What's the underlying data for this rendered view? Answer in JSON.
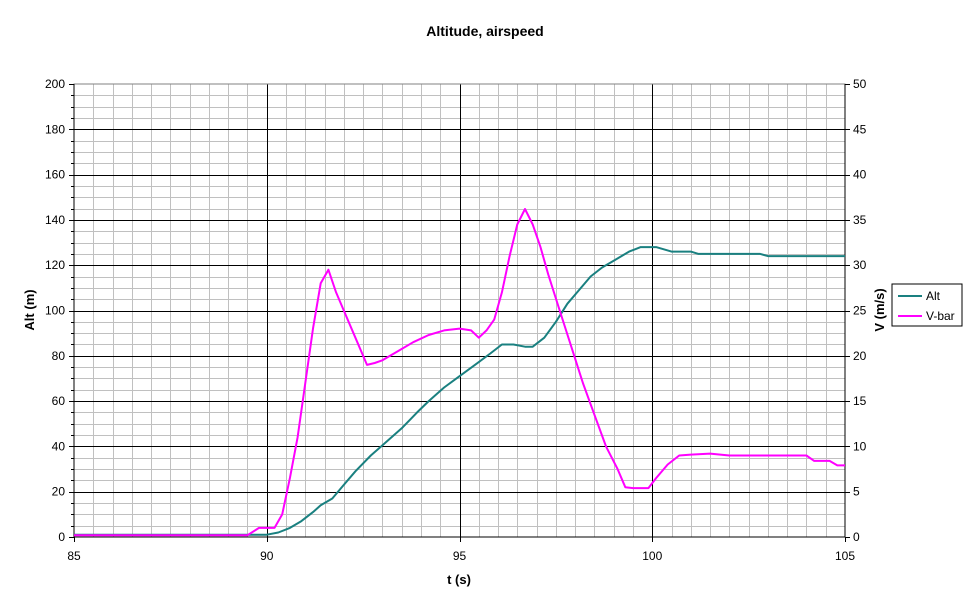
{
  "chart_data": {
    "type": "line",
    "title": "Altitude, airspeed",
    "xlabel": "t (s)",
    "ylabel_left": "Alt (m)",
    "ylabel_right": "V (m/s)",
    "xlim": [
      85,
      105
    ],
    "ylim_left": [
      0,
      200
    ],
    "ylim_right": [
      0,
      50
    ],
    "x_ticks": [
      85,
      90,
      95,
      100,
      105
    ],
    "y_ticks_left": [
      0,
      20,
      40,
      60,
      80,
      100,
      120,
      140,
      160,
      180,
      200
    ],
    "y_ticks_right": [
      0,
      5,
      10,
      15,
      20,
      25,
      30,
      35,
      40,
      45,
      50
    ],
    "grid": true,
    "legend_position": "right",
    "series": [
      {
        "name": "Alt",
        "axis": "left",
        "color": "#1a8080",
        "points": [
          [
            85,
            1
          ],
          [
            89.9,
            1
          ],
          [
            90.0,
            1
          ],
          [
            90.3,
            2
          ],
          [
            90.6,
            4
          ],
          [
            90.9,
            7
          ],
          [
            91.2,
            11
          ],
          [
            91.4,
            14
          ],
          [
            91.7,
            17
          ],
          [
            92.0,
            23
          ],
          [
            92.3,
            29
          ],
          [
            92.7,
            36
          ],
          [
            93.1,
            42
          ],
          [
            93.5,
            48
          ],
          [
            93.9,
            55
          ],
          [
            94.2,
            60
          ],
          [
            94.6,
            66
          ],
          [
            95.0,
            71
          ],
          [
            95.4,
            76
          ],
          [
            95.8,
            81
          ],
          [
            96.1,
            85
          ],
          [
            96.4,
            85
          ],
          [
            96.7,
            84
          ],
          [
            96.9,
            84
          ],
          [
            97.2,
            88
          ],
          [
            97.5,
            95
          ],
          [
            97.8,
            103
          ],
          [
            98.1,
            109
          ],
          [
            98.4,
            115
          ],
          [
            98.7,
            119
          ],
          [
            99.0,
            122
          ],
          [
            99.4,
            126
          ],
          [
            99.7,
            128
          ],
          [
            100.1,
            128
          ],
          [
            100.5,
            126
          ],
          [
            101.0,
            126
          ],
          [
            101.2,
            125
          ],
          [
            102.0,
            125
          ],
          [
            102.8,
            125
          ],
          [
            103.0,
            124
          ],
          [
            105,
            124
          ]
        ]
      },
      {
        "name": "V-bar",
        "axis": "right",
        "color": "#ff00ff",
        "points": [
          [
            85,
            0.2
          ],
          [
            89.5,
            0.2
          ],
          [
            89.8,
            1.0
          ],
          [
            90.2,
            1.0
          ],
          [
            90.4,
            2.5
          ],
          [
            90.6,
            6.5
          ],
          [
            90.8,
            11
          ],
          [
            91.0,
            17
          ],
          [
            91.2,
            23
          ],
          [
            91.4,
            28
          ],
          [
            91.6,
            29.5
          ],
          [
            91.8,
            27
          ],
          [
            92.0,
            25
          ],
          [
            92.3,
            22
          ],
          [
            92.6,
            19
          ],
          [
            92.8,
            19.2
          ],
          [
            93.0,
            19.5
          ],
          [
            93.4,
            20.5
          ],
          [
            93.8,
            21.5
          ],
          [
            94.2,
            22.3
          ],
          [
            94.6,
            22.8
          ],
          [
            95.0,
            23
          ],
          [
            95.3,
            22.8
          ],
          [
            95.5,
            22
          ],
          [
            95.7,
            22.8
          ],
          [
            95.9,
            24
          ],
          [
            96.1,
            27
          ],
          [
            96.3,
            31
          ],
          [
            96.5,
            34.5
          ],
          [
            96.7,
            36.2
          ],
          [
            96.9,
            34.5
          ],
          [
            97.1,
            32
          ],
          [
            97.3,
            29
          ],
          [
            97.6,
            25
          ],
          [
            97.9,
            21
          ],
          [
            98.2,
            17
          ],
          [
            98.5,
            13.5
          ],
          [
            98.8,
            10
          ],
          [
            99.1,
            7.5
          ],
          [
            99.3,
            5.5
          ],
          [
            99.5,
            5.4
          ],
          [
            99.9,
            5.4
          ],
          [
            100.1,
            6.5
          ],
          [
            100.4,
            8
          ],
          [
            100.7,
            9
          ],
          [
            101.0,
            9.1
          ],
          [
            101.5,
            9.2
          ],
          [
            102.0,
            9
          ],
          [
            103.0,
            9
          ],
          [
            104.0,
            9
          ],
          [
            104.2,
            8.4
          ],
          [
            104.6,
            8.4
          ],
          [
            104.8,
            7.9
          ],
          [
            105,
            7.9
          ]
        ]
      }
    ]
  }
}
